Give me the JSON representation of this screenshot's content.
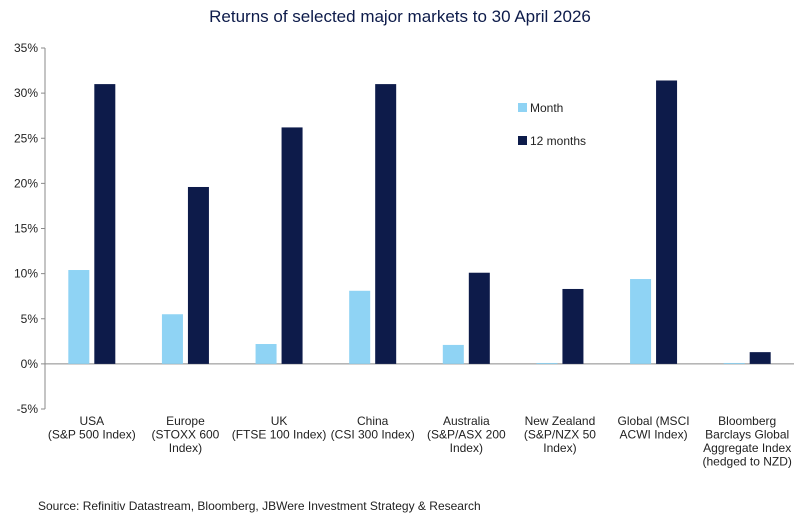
{
  "chart_data": {
    "type": "bar",
    "title": "Returns of selected major markets to 30 April 2026",
    "categories": [
      [
        "USA",
        "(S&P 500 Index)"
      ],
      [
        "Europe",
        "(STOXX 600",
        "Index)"
      ],
      [
        "UK",
        "(FTSE 100 Index)"
      ],
      [
        "China",
        "(CSI 300 Index)"
      ],
      [
        "Australia",
        "(S&P/ASX 200",
        "Index)"
      ],
      [
        "New Zealand",
        "(S&P/NZX 50",
        "Index)"
      ],
      [
        "Global (MSCI",
        "ACWI Index)"
      ],
      [
        "Bloomberg",
        "Barclays Global",
        "Aggregate Index",
        "(hedged to NZD)"
      ]
    ],
    "series": [
      {
        "name": "Month",
        "color": "#8fd3f4",
        "values": [
          10.4,
          5.5,
          2.2,
          8.1,
          2.1,
          0.1,
          9.4,
          0.1
        ]
      },
      {
        "name": "12 months",
        "color": "#0d1b4a",
        "values": [
          31.0,
          19.6,
          26.2,
          31.0,
          10.1,
          8.3,
          31.4,
          1.3
        ]
      }
    ],
    "yticks": [
      "35%",
      "30%",
      "25%",
      "20%",
      "15%",
      "10%",
      "5%",
      "0%",
      "-5%"
    ],
    "ylim": [
      -5,
      35
    ],
    "grid": false,
    "legend": "top-right",
    "source": "Source: Refinitiv Datastream, Bloomberg, JBWere Investment Strategy & Research"
  }
}
